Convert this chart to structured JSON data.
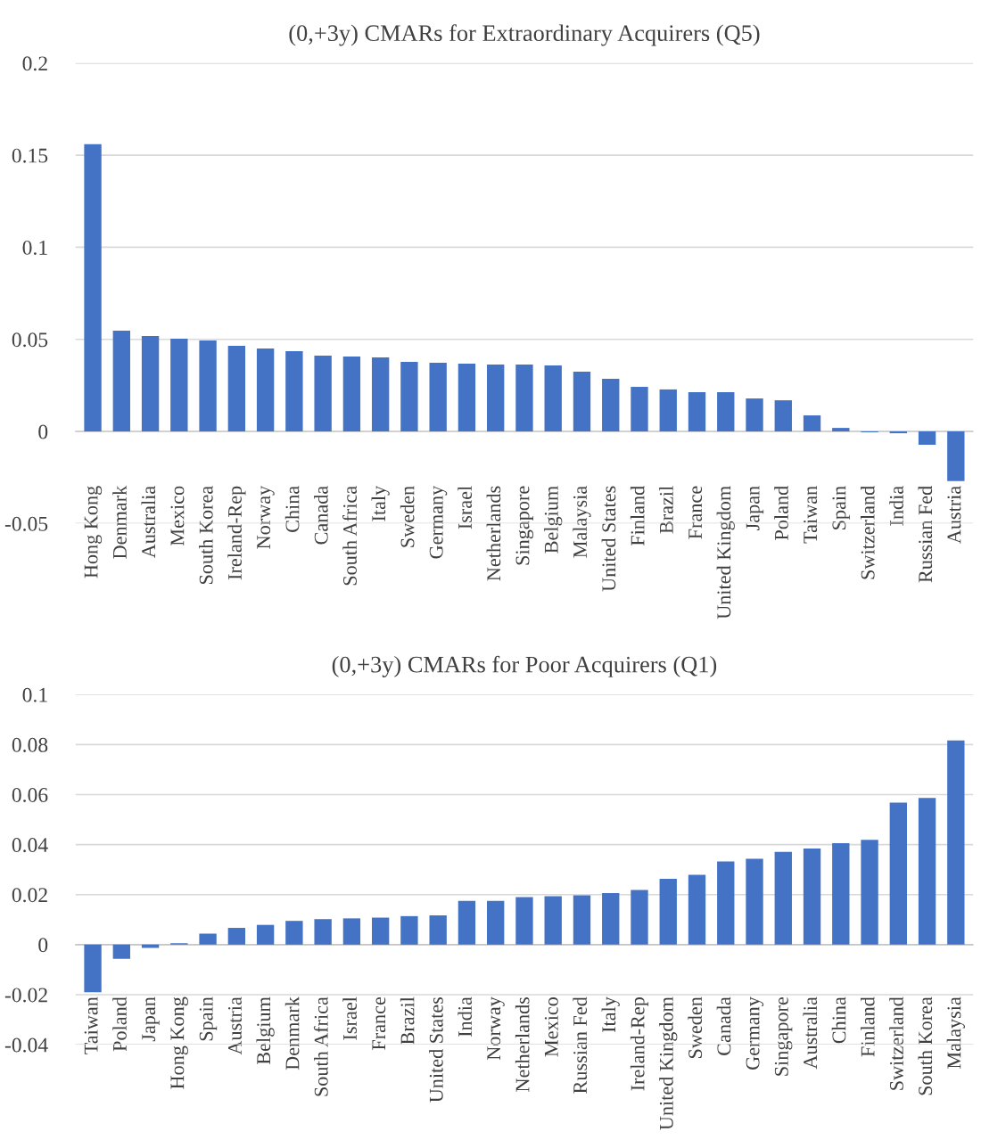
{
  "chart_data": [
    {
      "type": "bar",
      "title": "(0,+3y) CMARs for Extraordinary Acquirers (Q5)",
      "color": "#4472c4",
      "grid": "y",
      "categories": [
        "Hong Kong",
        "Denmark",
        "Australia",
        "Mexico",
        "South Korea",
        "Ireland-Rep",
        "Norway",
        "China",
        "Canada",
        "South Africa",
        "Italy",
        "Sweden",
        "Germany",
        "Israel",
        "Netherlands",
        "Singapore",
        "Belgium",
        "Malaysia",
        "United States",
        "Finland",
        "Brazil",
        "France",
        "United Kingdom",
        "Japan",
        "Poland",
        "Taiwan",
        "Spain",
        "Switzerland",
        "India",
        "Russian Fed",
        "Austria"
      ],
      "values": [
        0.156,
        0.0547,
        0.0518,
        0.0504,
        0.0494,
        0.0465,
        0.045,
        0.0436,
        0.0412,
        0.0407,
        0.0402,
        0.0378,
        0.0373,
        0.0368,
        0.0363,
        0.0363,
        0.0358,
        0.0324,
        0.0286,
        0.0242,
        0.0228,
        0.0213,
        0.0213,
        0.0179,
        0.0169,
        0.0087,
        0.0019,
        -0.0005,
        -0.001,
        -0.0073,
        -0.027
      ],
      "ylim": [
        -0.05,
        0.2
      ],
      "yticks": [
        -0.05,
        0,
        0.05,
        0.1,
        0.15,
        0.2
      ]
    },
    {
      "type": "bar",
      "title": "(0,+3y) CMARs for Poor Acquirers (Q1)",
      "color": "#4472c4",
      "grid": "y",
      "categories": [
        "Taiwan",
        "Poland",
        "Japan",
        "Hong Kong",
        "Spain",
        "Austria",
        "Belgium",
        "Denmark",
        "South Africa",
        "Israel",
        "France",
        "Brazil",
        "United States",
        "India",
        "Norway",
        "Netherlands",
        "Mexico",
        "Russian Fed",
        "Italy",
        "Ireland-Rep",
        "United Kingdom",
        "Sweden",
        "Canada",
        "Germany",
        "Singapore",
        "Australia",
        "China",
        "Finland",
        "Switzerland",
        "South Korea",
        "Malaysia"
      ],
      "values": [
        -0.019,
        -0.0057,
        -0.0013,
        0.0006,
        0.0044,
        0.0067,
        0.0079,
        0.0095,
        0.0102,
        0.0105,
        0.0108,
        0.0114,
        0.0117,
        0.0175,
        0.0175,
        0.019,
        0.0194,
        0.0197,
        0.0206,
        0.0219,
        0.0263,
        0.0279,
        0.0333,
        0.0343,
        0.0371,
        0.0384,
        0.0406,
        0.0419,
        0.0568,
        0.0587,
        0.0816
      ],
      "ylim": [
        -0.04,
        0.1
      ],
      "yticks": [
        -0.04,
        -0.02,
        0,
        0.02,
        0.04,
        0.06,
        0.08,
        0.1
      ]
    }
  ]
}
